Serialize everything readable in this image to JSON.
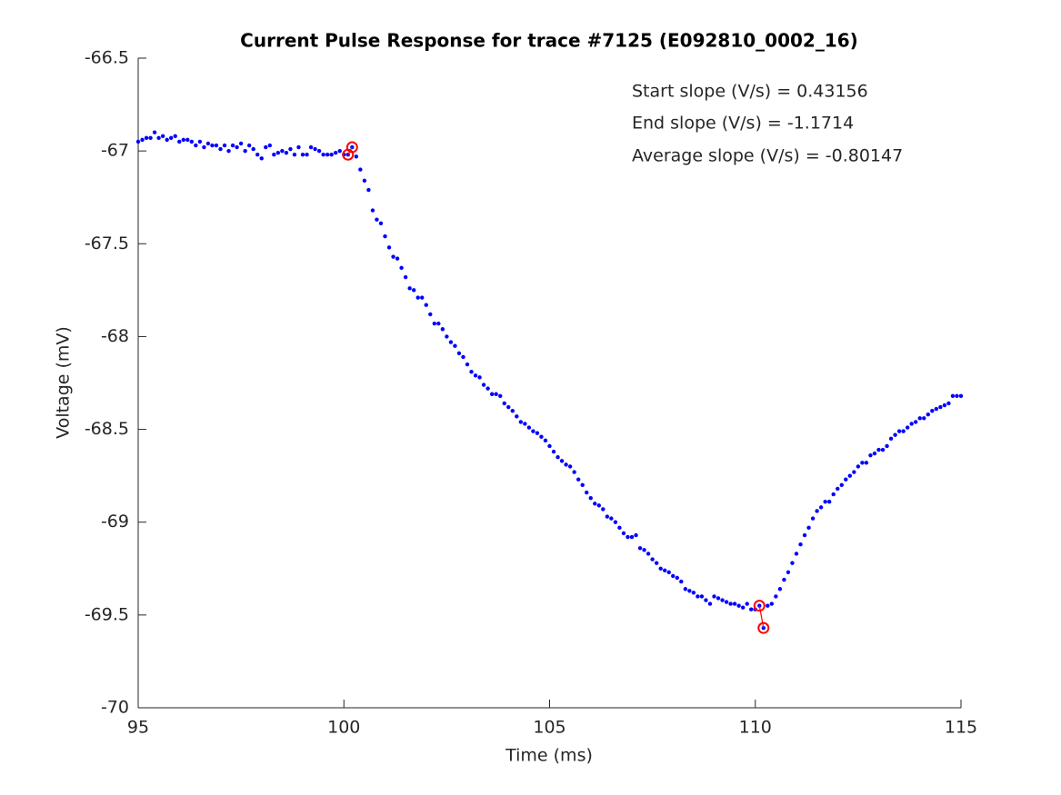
{
  "chart_data": {
    "type": "scatter",
    "title": "Current Pulse Response for trace #7125 (E092810_0002_16)",
    "xlabel": "Time (ms)",
    "ylabel": "Voltage (mV)",
    "annotations": [
      "Start slope (V/s) = 0.43156",
      "End slope (V/s) = -1.1714",
      "Average slope (V/s) = -0.80147"
    ],
    "xlim": [
      95,
      115
    ],
    "xticks": [
      95,
      100,
      105,
      110,
      115
    ],
    "ylim": [
      -70,
      -66.5
    ],
    "yticks": [
      -70,
      -69.5,
      -69,
      -68.5,
      -68,
      -67.5,
      -67,
      -66.5
    ],
    "x": [
      95,
      95.1,
      95.2,
      95.3,
      95.4,
      95.5,
      95.6,
      95.7,
      95.8,
      95.9,
      96,
      96.1,
      96.2,
      96.3,
      96.4,
      96.5,
      96.6,
      96.7,
      96.8,
      96.9,
      97,
      97.1,
      97.2,
      97.3,
      97.4,
      97.5,
      97.6,
      97.7,
      97.8,
      97.9,
      98,
      98.1,
      98.2,
      98.3,
      98.4,
      98.5,
      98.6,
      98.7,
      98.8,
      98.9,
      99,
      99.1,
      99.2,
      99.3,
      99.4,
      99.5,
      99.6,
      99.7,
      99.8,
      99.9,
      100,
      100.1,
      100.2,
      100.3,
      100.4,
      100.5,
      100.6,
      100.7,
      100.8,
      100.9,
      101,
      101.1,
      101.2,
      101.3,
      101.4,
      101.5,
      101.6,
      101.7,
      101.8,
      101.9,
      102,
      102.1,
      102.2,
      102.3,
      102.4,
      102.5,
      102.6,
      102.7,
      102.8,
      102.9,
      103,
      103.1,
      103.2,
      103.3,
      103.4,
      103.5,
      103.6,
      103.7,
      103.8,
      103.9,
      104,
      104.1,
      104.2,
      104.3,
      104.4,
      104.5,
      104.6,
      104.7,
      104.8,
      104.9,
      105,
      105.1,
      105.2,
      105.3,
      105.4,
      105.5,
      105.6,
      105.7,
      105.8,
      105.9,
      106,
      106.1,
      106.2,
      106.3,
      106.4,
      106.5,
      106.6,
      106.7,
      106.8,
      106.9,
      107,
      107.1,
      107.2,
      107.3,
      107.4,
      107.5,
      107.6,
      107.7,
      107.8,
      107.9,
      108,
      108.1,
      108.2,
      108.3,
      108.4,
      108.5,
      108.6,
      108.7,
      108.8,
      108.9,
      109,
      109.1,
      109.2,
      109.3,
      109.4,
      109.5,
      109.6,
      109.7,
      109.8,
      109.9,
      110,
      110.1,
      110.2,
      110.3,
      110.4,
      110.5,
      110.6,
      110.7,
      110.8,
      110.9,
      111,
      111.1,
      111.2,
      111.3,
      111.4,
      111.5,
      111.6,
      111.7,
      111.8,
      111.9,
      112,
      112.1,
      112.2,
      112.3,
      112.4,
      112.5,
      112.6,
      112.7,
      112.8,
      112.9,
      113,
      113.1,
      113.2,
      113.3,
      113.4,
      113.5,
      113.6,
      113.7,
      113.8,
      113.9,
      114,
      114.1,
      114.2,
      114.3,
      114.4,
      114.5,
      114.6,
      114.7,
      114.8,
      114.9,
      115
    ],
    "series": [
      {
        "color": "#0000ff",
        "values": [
          -66.95,
          -66.94,
          -66.93,
          -66.93,
          -66.9,
          -66.93,
          -66.92,
          -66.94,
          -66.93,
          -66.92,
          -66.95,
          -66.94,
          -66.94,
          -66.95,
          -66.97,
          -66.95,
          -66.98,
          -66.96,
          -66.97,
          -66.97,
          -66.99,
          -66.97,
          -67.0,
          -66.97,
          -66.98,
          -66.96,
          -67.0,
          -66.97,
          -66.99,
          -67.02,
          -67.04,
          -66.98,
          -66.97,
          -67.02,
          -67.01,
          -67.0,
          -67.01,
          -66.99,
          -67.02,
          -66.98,
          -67.02,
          -67.02,
          -66.98,
          -66.99,
          -67.0,
          -67.02,
          -67.02,
          -67.02,
          -67.01,
          -67.0,
          -67.02,
          -67.02,
          -66.98,
          -67.03,
          -67.1,
          -67.16,
          -67.21,
          -67.32,
          -67.37,
          -67.39,
          -67.46,
          -67.52,
          -67.57,
          -67.58,
          -67.63,
          -67.68,
          -67.74,
          -67.75,
          -67.79,
          -67.79,
          -67.83,
          -67.88,
          -67.93,
          -67.93,
          -67.96,
          -68.0,
          -68.03,
          -68.05,
          -68.09,
          -68.11,
          -68.15,
          -68.19,
          -68.21,
          -68.22,
          -68.26,
          -68.28,
          -68.31,
          -68.31,
          -68.32,
          -68.36,
          -68.38,
          -68.4,
          -68.43,
          -68.46,
          -68.47,
          -68.49,
          -68.51,
          -68.52,
          -68.54,
          -68.56,
          -68.59,
          -68.62,
          -68.65,
          -68.67,
          -68.69,
          -68.7,
          -68.73,
          -68.77,
          -68.8,
          -68.84,
          -68.87,
          -68.9,
          -68.91,
          -68.93,
          -68.97,
          -68.98,
          -69.0,
          -69.03,
          -69.06,
          -69.08,
          -69.08,
          -69.07,
          -69.14,
          -69.15,
          -69.17,
          -69.2,
          -69.22,
          -69.25,
          -69.26,
          -69.27,
          -69.29,
          -69.3,
          -69.32,
          -69.36,
          -69.37,
          -69.38,
          -69.4,
          -69.4,
          -69.42,
          -69.44,
          -69.4,
          -69.41,
          -69.42,
          -69.43,
          -69.44,
          -69.44,
          -69.45,
          -69.46,
          -69.44,
          -69.47,
          -69.47,
          -69.45,
          -69.57,
          -69.45,
          -69.44,
          -69.4,
          -69.36,
          -69.31,
          -69.27,
          -69.22,
          -69.17,
          -69.12,
          -69.07,
          -69.03,
          -68.98,
          -68.94,
          -68.92,
          -68.89,
          -68.89,
          -68.85,
          -68.82,
          -68.8,
          -68.77,
          -68.75,
          -68.73,
          -68.7,
          -68.68,
          -68.68,
          -68.64,
          -68.63,
          -68.61,
          -68.61,
          -68.59,
          -68.55,
          -68.53,
          -68.51,
          -68.51,
          -68.49,
          -68.47,
          -68.46,
          -68.44,
          -68.44,
          -68.42,
          -68.4,
          -68.39,
          -68.38,
          -68.37,
          -68.36,
          -68.32,
          -68.32,
          -68.32
        ]
      }
    ],
    "highlights": [
      {
        "color": "#ff0000",
        "x": [
          100.1,
          100.2
        ],
        "y": [
          -67.02,
          -66.98
        ]
      },
      {
        "color": "#ff0000",
        "x": [
          110.1,
          110.2
        ],
        "y": [
          -69.45,
          -69.57
        ]
      }
    ]
  }
}
